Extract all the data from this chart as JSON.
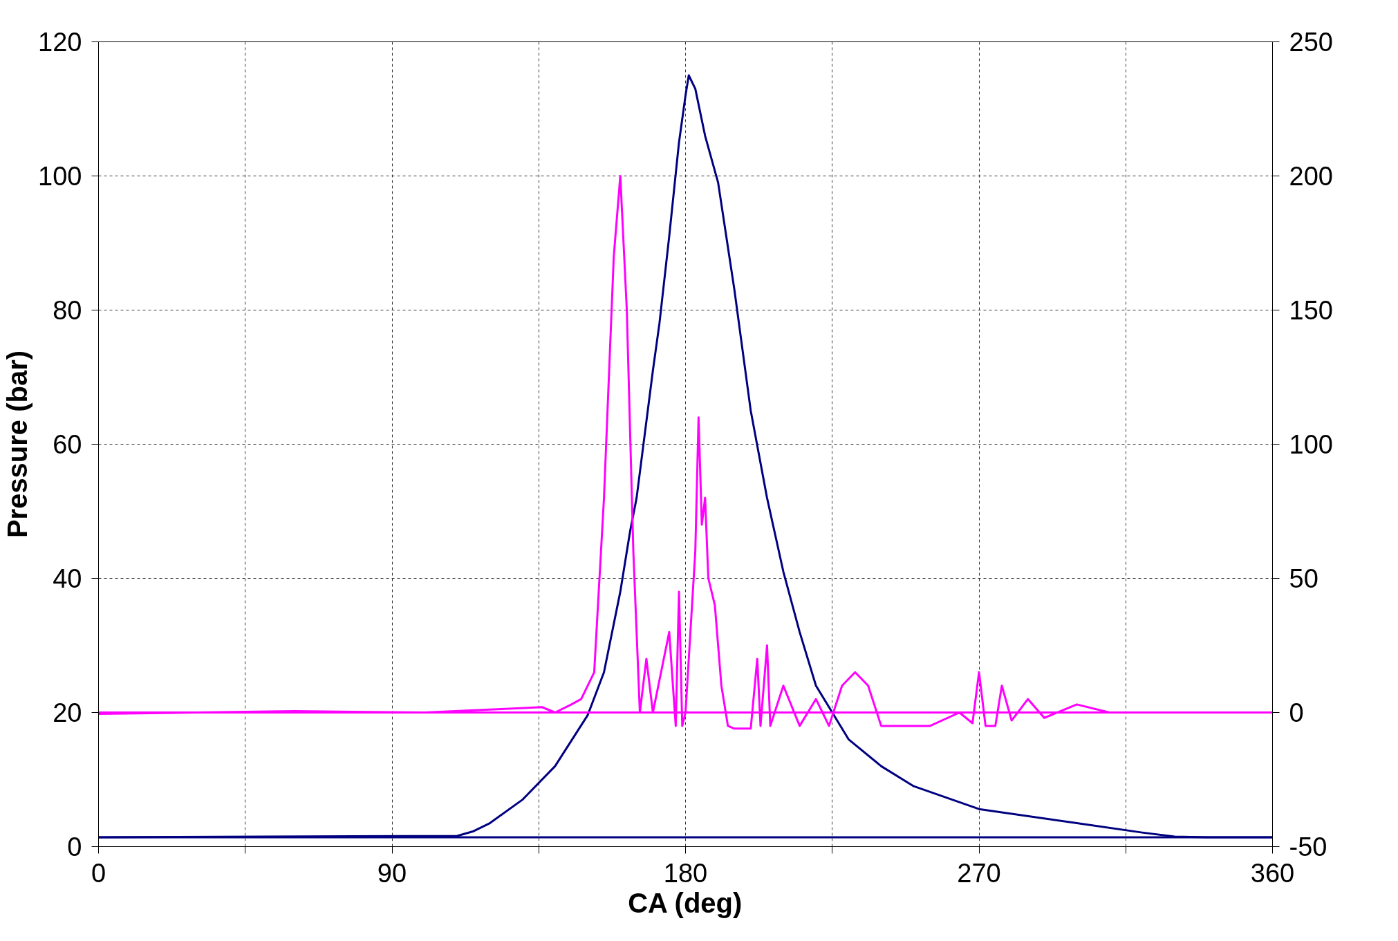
{
  "chart_data": {
    "type": "line",
    "xlabel": "CA (deg)",
    "ylabel": "Pressure (bar)",
    "xlim": [
      0,
      360
    ],
    "xticks": [
      0,
      {
        "value": 45,
        "label": null
      },
      90,
      {
        "value": 135,
        "label": null
      },
      180,
      {
        "value": 225,
        "label": null
      },
      270,
      {
        "value": 315,
        "label": null
      },
      360
    ],
    "ylim": [
      0,
      120
    ],
    "yticks": [
      0,
      20,
      40,
      60,
      80,
      100,
      120
    ],
    "y2lim": [
      -50,
      250
    ],
    "y2ticks": [
      -50,
      0,
      50,
      100,
      150,
      200,
      250
    ],
    "grid": true,
    "marker": "none",
    "line_style": "solid",
    "series": [
      {
        "color": "#000080",
        "x": [
          0,
          110,
          115,
          120,
          130,
          140,
          150,
          155,
          160,
          163,
          165,
          170,
          172,
          175,
          178,
          180,
          181,
          183,
          186,
          190,
          195,
          200,
          205,
          210,
          215,
          220,
          225,
          230,
          240,
          250,
          270,
          300,
          320,
          330,
          340,
          360
        ],
        "values": [
          1.4,
          1.6,
          2.3,
          3.5,
          7,
          12,
          19.6,
          26,
          38,
          47,
          52,
          71,
          78,
          91,
          105,
          112,
          115,
          113,
          106,
          99,
          83,
          65,
          52,
          41,
          32,
          24,
          20,
          16,
          12,
          9,
          5.6,
          3.5,
          2.1,
          1.5,
          1.4,
          1.4
        ]
      },
      {
        "color": "#000080",
        "x": [
          0,
          360
        ],
        "values": [
          1.4,
          1.4
        ]
      },
      {
        "color": "#ff00ff",
        "axis": "y2",
        "x": [
          0,
          30,
          60,
          100,
          136,
          140,
          145,
          148,
          152,
          155,
          158,
          160,
          162,
          164,
          166,
          168,
          170,
          175,
          177,
          178,
          179,
          180,
          183,
          184,
          185,
          186,
          187,
          189,
          191,
          193,
          195,
          200,
          202,
          203,
          205,
          206,
          210,
          215,
          220,
          224,
          228,
          232,
          236,
          240,
          255,
          264,
          268,
          270,
          272,
          275,
          277,
          280,
          285,
          290,
          300,
          310,
          330,
          360
        ],
        "values": [
          -0.5,
          0,
          0.5,
          0,
          2,
          0,
          3,
          5,
          15,
          80,
          170,
          200,
          150,
          60,
          0,
          20,
          0,
          30,
          -5,
          45,
          -5,
          0,
          60,
          110,
          70,
          80,
          50,
          40,
          10,
          -5,
          -6,
          -6,
          20,
          -5,
          25,
          -5,
          10,
          -5,
          5,
          -5,
          10,
          15,
          10,
          -5,
          -5,
          0,
          -4,
          15,
          -5,
          -5,
          10,
          -3,
          5,
          -2,
          3,
          0,
          0,
          0
        ]
      },
      {
        "color": "#ff00ff",
        "axis": "y2",
        "x": [
          0,
          360
        ],
        "values": [
          0,
          0
        ]
      }
    ]
  }
}
